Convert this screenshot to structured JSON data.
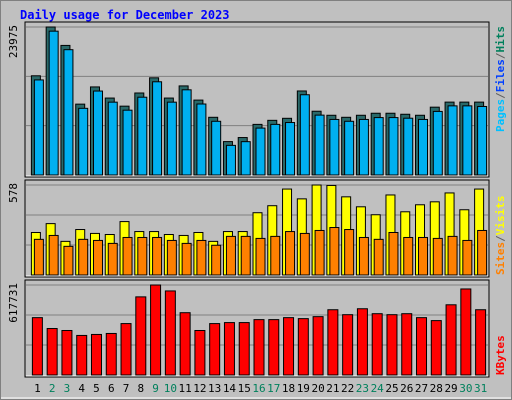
{
  "chart_data": [
    {
      "type": "bar",
      "title": "Daily usage for December 2023",
      "ylabel_parts": [
        "Pages",
        "/",
        "Files",
        "/",
        "Hits"
      ],
      "ylabel_colors": [
        "#00c0ff",
        "#606060",
        "#0040ff",
        "#606060",
        "#00805c"
      ],
      "ylim": [
        0,
        23975
      ],
      "yticks": [
        23975
      ],
      "series": [
        {
          "name": "Hits",
          "color": "#2a6a6a",
          "values": [
            16072,
            23975,
            20992,
            11480,
            14268,
            12464,
            11152,
            13284,
            15744,
            12464,
            14432,
            12136,
            9348,
            5412,
            6068,
            8200,
            8856,
            9184,
            13612,
            10332,
            9676,
            9348,
            9676,
            10004,
            10004,
            9840,
            9676,
            10988,
            11808,
            11808,
            11808
          ]
        },
        {
          "name": "Pages",
          "color": "#00b0f0",
          "values": [
            15400,
            23300,
            20300,
            10800,
            13600,
            11800,
            10500,
            12600,
            15100,
            11800,
            13800,
            11500,
            8700,
            4800,
            5400,
            7600,
            8200,
            8500,
            13000,
            9700,
            9000,
            8700,
            9000,
            9300,
            9300,
            9200,
            9000,
            10300,
            11200,
            11200,
            11100
          ]
        }
      ]
    },
    {
      "type": "bar",
      "ylabel_parts": [
        "Sites",
        "/",
        "Visits"
      ],
      "ylabel_colors": [
        "#ff8000",
        "#606060",
        "#ffff00"
      ],
      "ylim": [
        0,
        578
      ],
      "yticks": [
        578
      ],
      "series": [
        {
          "name": "Visits",
          "color": "#ffff00",
          "values": [
            273,
            330,
            216,
            292,
            267,
            260,
            343,
            279,
            279,
            260,
            254,
            273,
            216,
            279,
            279,
            400,
            445,
            552,
            489,
            578,
            575,
            502,
            438,
            387,
            514,
            406,
            451,
            470,
            527,
            419,
            552
          ]
        },
        {
          "name": "Sites",
          "color": "#ff8000",
          "values": [
            229,
            254,
            184,
            229,
            222,
            203,
            241,
            241,
            241,
            222,
            203,
            222,
            191,
            248,
            248,
            235,
            248,
            279,
            267,
            286,
            305,
            292,
            241,
            229,
            273,
            241,
            241,
            235,
            248,
            222,
            286
          ]
        }
      ]
    },
    {
      "type": "bar",
      "ylabel_parts": [
        "KBytes"
      ],
      "ylabel_colors": [
        "#ff0000"
      ],
      "ylim": [
        0,
        617731
      ],
      "yticks": [
        617731
      ],
      "categories": [
        "1",
        "2",
        "3",
        "4",
        "5",
        "6",
        "7",
        "8",
        "9",
        "10",
        "11",
        "12",
        "13",
        "14",
        "15",
        "16",
        "17",
        "18",
        "19",
        "20",
        "21",
        "22",
        "23",
        "24",
        "25",
        "26",
        "27",
        "28",
        "29",
        "30",
        "31"
      ],
      "category_colors": [
        "#000000",
        "#00805c",
        "#00805c",
        "#000000",
        "#000000",
        "#000000",
        "#000000",
        "#000000",
        "#00805c",
        "#00805c",
        "#000000",
        "#000000",
        "#000000",
        "#000000",
        "#000000",
        "#00805c",
        "#00805c",
        "#000000",
        "#000000",
        "#000000",
        "#000000",
        "#000000",
        "#00805c",
        "#00805c",
        "#000000",
        "#000000",
        "#000000",
        "#000000",
        "#000000",
        "#00805c",
        "#00805c"
      ],
      "series": [
        {
          "name": "KBytes",
          "color": "#ff0000",
          "values": [
            393704,
            319036,
            305460,
            271520,
            278308,
            285096,
            352976,
            536252,
            617731,
            576980,
            427644,
            305460,
            352976,
            359764,
            359764,
            380128,
            380128,
            393704,
            386916,
            400492,
            448008,
            414068,
            454796,
            420856,
            414068,
            420856,
            393704,
            373340,
            481948,
            590556,
            448008
          ]
        }
      ]
    }
  ]
}
